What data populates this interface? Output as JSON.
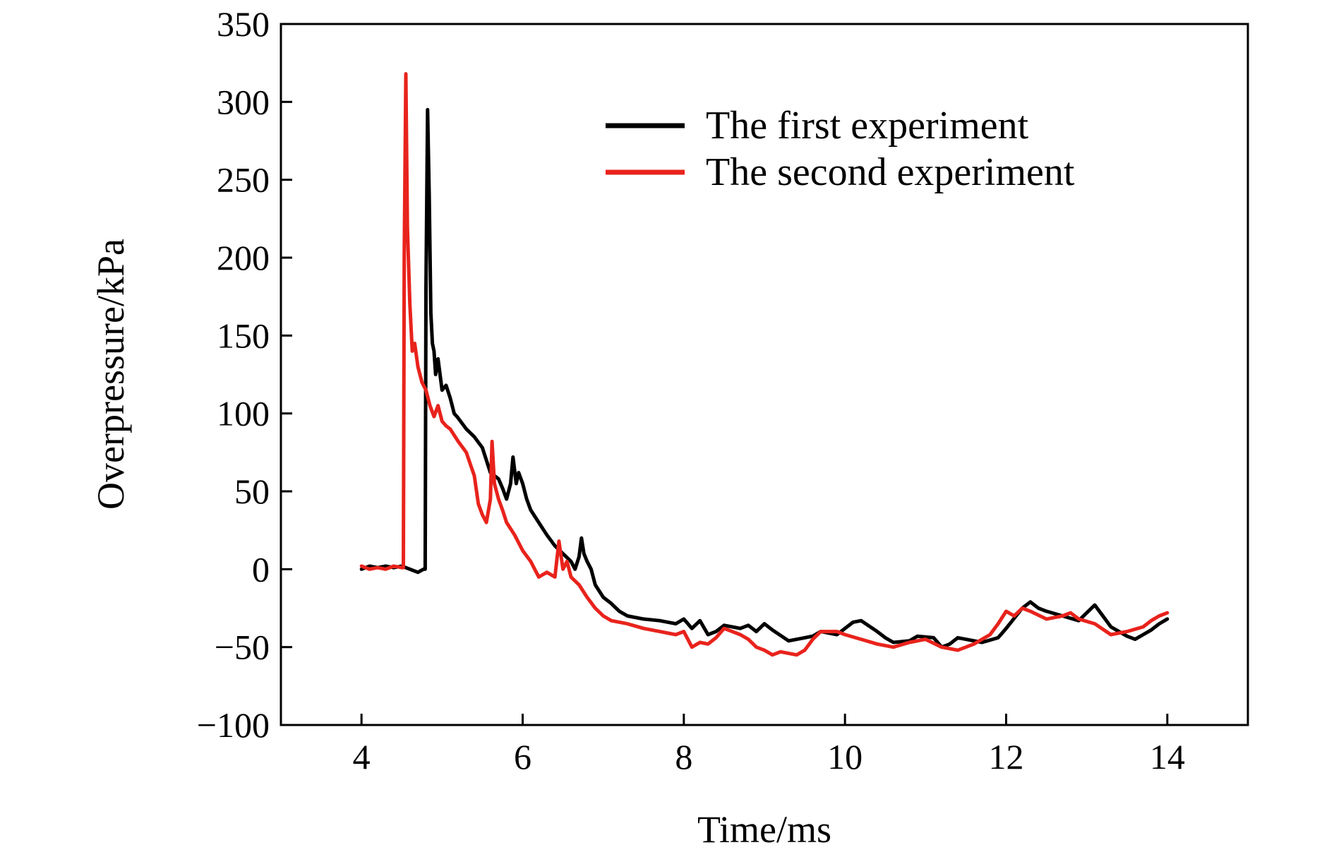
{
  "chart_data": {
    "type": "line",
    "title": "",
    "xlabel": "Time/ms",
    "ylabel": "Overpressure/kPa",
    "xlim": [
      3,
      15
    ],
    "ylim": [
      -100,
      350
    ],
    "x_ticks": [
      4,
      6,
      8,
      10,
      12,
      14
    ],
    "y_ticks": [
      -100,
      -50,
      0,
      50,
      100,
      150,
      200,
      250,
      300,
      350
    ],
    "x_tick_labels": [
      "4",
      "6",
      "8",
      "10",
      "12",
      "14"
    ],
    "y_tick_labels": [
      "−100",
      "−50",
      "0",
      "50",
      "100",
      "150",
      "200",
      "250",
      "300",
      "350"
    ],
    "grid": false,
    "legend_position": "top-right",
    "series": [
      {
        "name": "The first experiment",
        "color": "#000000",
        "points": [
          [
            4.0,
            0
          ],
          [
            4.1,
            2
          ],
          [
            4.2,
            1
          ],
          [
            4.3,
            2
          ],
          [
            4.4,
            1
          ],
          [
            4.5,
            2
          ],
          [
            4.6,
            0
          ],
          [
            4.7,
            -2
          ],
          [
            4.77,
            0
          ],
          [
            4.79,
            0
          ],
          [
            4.8,
            180
          ],
          [
            4.82,
            295
          ],
          [
            4.84,
            240
          ],
          [
            4.86,
            165
          ],
          [
            4.88,
            145
          ],
          [
            4.9,
            140
          ],
          [
            4.92,
            125
          ],
          [
            4.95,
            135
          ],
          [
            5.0,
            115
          ],
          [
            5.05,
            118
          ],
          [
            5.1,
            110
          ],
          [
            5.15,
            100
          ],
          [
            5.2,
            97
          ],
          [
            5.3,
            90
          ],
          [
            5.4,
            85
          ],
          [
            5.5,
            78
          ],
          [
            5.55,
            70
          ],
          [
            5.6,
            62
          ],
          [
            5.7,
            58
          ],
          [
            5.75,
            52
          ],
          [
            5.8,
            45
          ],
          [
            5.85,
            55
          ],
          [
            5.88,
            72
          ],
          [
            5.92,
            55
          ],
          [
            5.95,
            62
          ],
          [
            6.0,
            55
          ],
          [
            6.05,
            45
          ],
          [
            6.1,
            38
          ],
          [
            6.2,
            30
          ],
          [
            6.3,
            22
          ],
          [
            6.4,
            15
          ],
          [
            6.5,
            10
          ],
          [
            6.6,
            5
          ],
          [
            6.65,
            0
          ],
          [
            6.7,
            8
          ],
          [
            6.73,
            20
          ],
          [
            6.76,
            10
          ],
          [
            6.8,
            5
          ],
          [
            6.85,
            0
          ],
          [
            6.9,
            -10
          ],
          [
            7.0,
            -18
          ],
          [
            7.1,
            -22
          ],
          [
            7.2,
            -27
          ],
          [
            7.3,
            -30
          ],
          [
            7.5,
            -32
          ],
          [
            7.7,
            -33
          ],
          [
            7.9,
            -35
          ],
          [
            8.0,
            -32
          ],
          [
            8.1,
            -38
          ],
          [
            8.2,
            -33
          ],
          [
            8.3,
            -42
          ],
          [
            8.4,
            -40
          ],
          [
            8.5,
            -36
          ],
          [
            8.7,
            -38
          ],
          [
            8.8,
            -36
          ],
          [
            8.9,
            -40
          ],
          [
            9.0,
            -35
          ],
          [
            9.1,
            -39
          ],
          [
            9.3,
            -46
          ],
          [
            9.5,
            -44
          ],
          [
            9.6,
            -43
          ],
          [
            9.7,
            -40
          ],
          [
            9.9,
            -42
          ],
          [
            10.1,
            -34
          ],
          [
            10.2,
            -33
          ],
          [
            10.4,
            -40
          ],
          [
            10.5,
            -44
          ],
          [
            10.6,
            -47
          ],
          [
            10.8,
            -46
          ],
          [
            10.9,
            -43
          ],
          [
            11.1,
            -44
          ],
          [
            11.2,
            -50
          ],
          [
            11.3,
            -48
          ],
          [
            11.4,
            -44
          ],
          [
            11.5,
            -45
          ],
          [
            11.7,
            -47
          ],
          [
            11.9,
            -44
          ],
          [
            12.0,
            -38
          ],
          [
            12.2,
            -25
          ],
          [
            12.3,
            -21
          ],
          [
            12.4,
            -25
          ],
          [
            12.5,
            -27
          ],
          [
            12.7,
            -30
          ],
          [
            12.9,
            -33
          ],
          [
            13.0,
            -28
          ],
          [
            13.1,
            -23
          ],
          [
            13.2,
            -30
          ],
          [
            13.3,
            -37
          ],
          [
            13.4,
            -40
          ],
          [
            13.5,
            -43
          ],
          [
            13.6,
            -45
          ],
          [
            13.7,
            -42
          ],
          [
            13.8,
            -39
          ],
          [
            13.9,
            -35
          ],
          [
            14.0,
            -32
          ]
        ]
      },
      {
        "name": "The second experiment",
        "color": "#e8231c",
        "points": [
          [
            4.0,
            2
          ],
          [
            4.1,
            0
          ],
          [
            4.2,
            1
          ],
          [
            4.3,
            0
          ],
          [
            4.4,
            2
          ],
          [
            4.5,
            1
          ],
          [
            4.52,
            1
          ],
          [
            4.53,
            200
          ],
          [
            4.55,
            318
          ],
          [
            4.57,
            220
          ],
          [
            4.6,
            170
          ],
          [
            4.63,
            140
          ],
          [
            4.66,
            145
          ],
          [
            4.7,
            130
          ],
          [
            4.75,
            120
          ],
          [
            4.8,
            115
          ],
          [
            4.85,
            105
          ],
          [
            4.9,
            98
          ],
          [
            4.95,
            105
          ],
          [
            5.0,
            95
          ],
          [
            5.05,
            92
          ],
          [
            5.1,
            90
          ],
          [
            5.2,
            82
          ],
          [
            5.3,
            75
          ],
          [
            5.4,
            60
          ],
          [
            5.45,
            42
          ],
          [
            5.5,
            35
          ],
          [
            5.55,
            30
          ],
          [
            5.6,
            45
          ],
          [
            5.62,
            82
          ],
          [
            5.65,
            55
          ],
          [
            5.7,
            45
          ],
          [
            5.75,
            38
          ],
          [
            5.8,
            30
          ],
          [
            5.9,
            22
          ],
          [
            6.0,
            12
          ],
          [
            6.1,
            5
          ],
          [
            6.2,
            -5
          ],
          [
            6.3,
            -2
          ],
          [
            6.4,
            -5
          ],
          [
            6.45,
            18
          ],
          [
            6.5,
            0
          ],
          [
            6.55,
            5
          ],
          [
            6.6,
            -5
          ],
          [
            6.7,
            -10
          ],
          [
            6.8,
            -18
          ],
          [
            6.9,
            -25
          ],
          [
            7.0,
            -30
          ],
          [
            7.1,
            -33
          ],
          [
            7.3,
            -35
          ],
          [
            7.5,
            -38
          ],
          [
            7.7,
            -40
          ],
          [
            7.9,
            -42
          ],
          [
            8.0,
            -40
          ],
          [
            8.1,
            -50
          ],
          [
            8.2,
            -47
          ],
          [
            8.3,
            -48
          ],
          [
            8.4,
            -44
          ],
          [
            8.5,
            -38
          ],
          [
            8.6,
            -40
          ],
          [
            8.7,
            -42
          ],
          [
            8.8,
            -45
          ],
          [
            8.9,
            -50
          ],
          [
            9.0,
            -52
          ],
          [
            9.1,
            -55
          ],
          [
            9.2,
            -53
          ],
          [
            9.4,
            -55
          ],
          [
            9.5,
            -52
          ],
          [
            9.6,
            -45
          ],
          [
            9.7,
            -40
          ],
          [
            9.9,
            -40
          ],
          [
            10.0,
            -42
          ],
          [
            10.2,
            -45
          ],
          [
            10.4,
            -48
          ],
          [
            10.6,
            -50
          ],
          [
            10.8,
            -47
          ],
          [
            11.0,
            -45
          ],
          [
            11.2,
            -50
          ],
          [
            11.4,
            -52
          ],
          [
            11.6,
            -48
          ],
          [
            11.8,
            -42
          ],
          [
            11.9,
            -35
          ],
          [
            12.0,
            -27
          ],
          [
            12.1,
            -30
          ],
          [
            12.2,
            -25
          ],
          [
            12.3,
            -27
          ],
          [
            12.5,
            -32
          ],
          [
            12.7,
            -30
          ],
          [
            12.8,
            -28
          ],
          [
            12.9,
            -32
          ],
          [
            13.1,
            -35
          ],
          [
            13.3,
            -42
          ],
          [
            13.5,
            -40
          ],
          [
            13.7,
            -37
          ],
          [
            13.8,
            -33
          ],
          [
            13.9,
            -30
          ],
          [
            14.0,
            -28
          ]
        ]
      }
    ]
  }
}
